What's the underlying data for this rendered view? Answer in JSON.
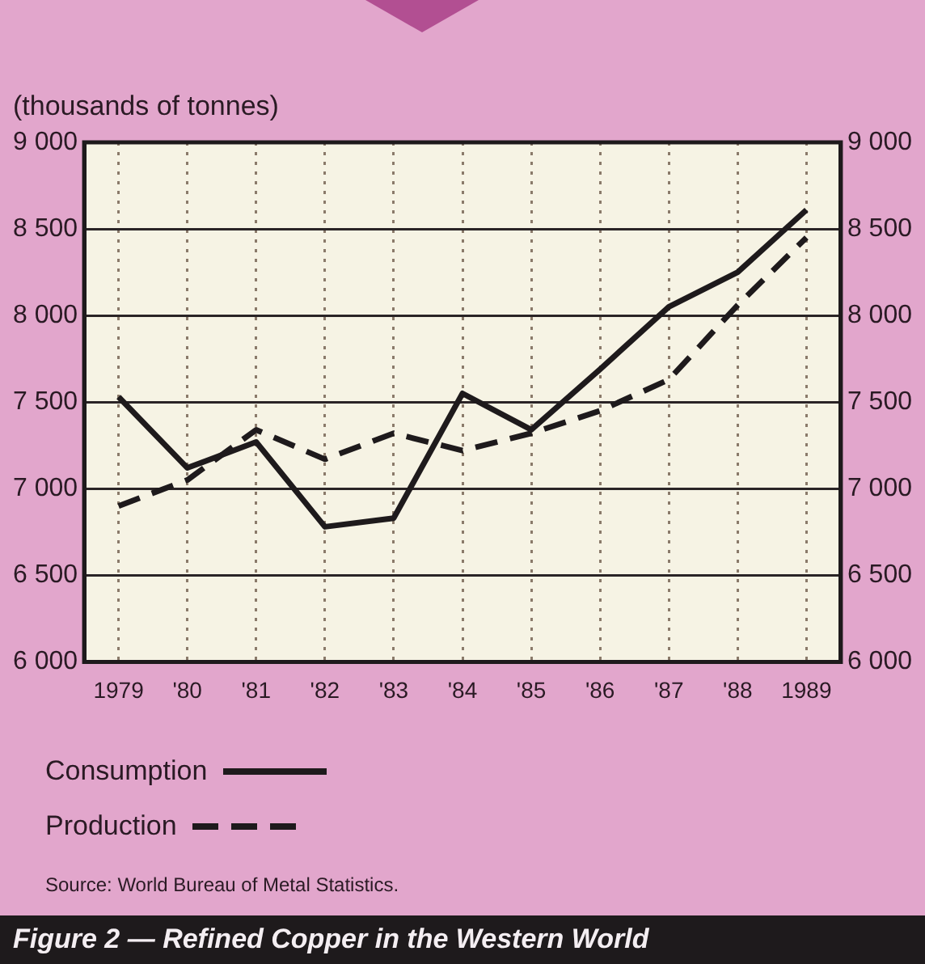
{
  "chart_data": {
    "type": "line",
    "title": "Figure 2 — Refined Copper in the Western World",
    "ylabel": "(thousands of tonnes)",
    "categories": [
      "1979",
      "'80",
      "'81",
      "'82",
      "'83",
      "'84",
      "'85",
      "'86",
      "'87",
      "'88",
      "1989"
    ],
    "series": [
      {
        "name": "Consumption",
        "color": "#1e1a1c",
        "line_style": "solid",
        "values": [
          7530,
          7120,
          7270,
          6780,
          6830,
          7550,
          7340,
          7690,
          8050,
          8250,
          8610
        ]
      },
      {
        "name": "Production",
        "color": "#1e1a1c",
        "line_style": "dashed",
        "values": [
          6900,
          7050,
          7340,
          7170,
          7320,
          7220,
          7320,
          7450,
          7630,
          8060,
          8450
        ]
      }
    ],
    "ylim": [
      6000,
      9000
    ],
    "yticks": [
      {
        "value": 6000,
        "label": "6 000"
      },
      {
        "value": 6500,
        "label": "6 500"
      },
      {
        "value": 7000,
        "label": "7 000"
      },
      {
        "value": 7500,
        "label": "7 500"
      },
      {
        "value": 8000,
        "label": "8 000"
      },
      {
        "value": 8500,
        "label": "8 500"
      },
      {
        "value": 9000,
        "label": "9 000"
      }
    ],
    "y2lim": [
      6000,
      9000
    ],
    "y2ticks": [
      {
        "value": 6000,
        "label": "6 000"
      },
      {
        "value": 6500,
        "label": "6 500"
      },
      {
        "value": 7000,
        "label": "7 000"
      },
      {
        "value": 7500,
        "label": "7 500"
      },
      {
        "value": 8000,
        "label": "8 000"
      },
      {
        "value": 8500,
        "label": "8 500"
      },
      {
        "value": 9000,
        "label": "9 000"
      }
    ],
    "grid": true,
    "legend": "bottom left",
    "marker": "none",
    "annotations": [
      "Source: World Bureau of Metal Statistics."
    ]
  }
}
